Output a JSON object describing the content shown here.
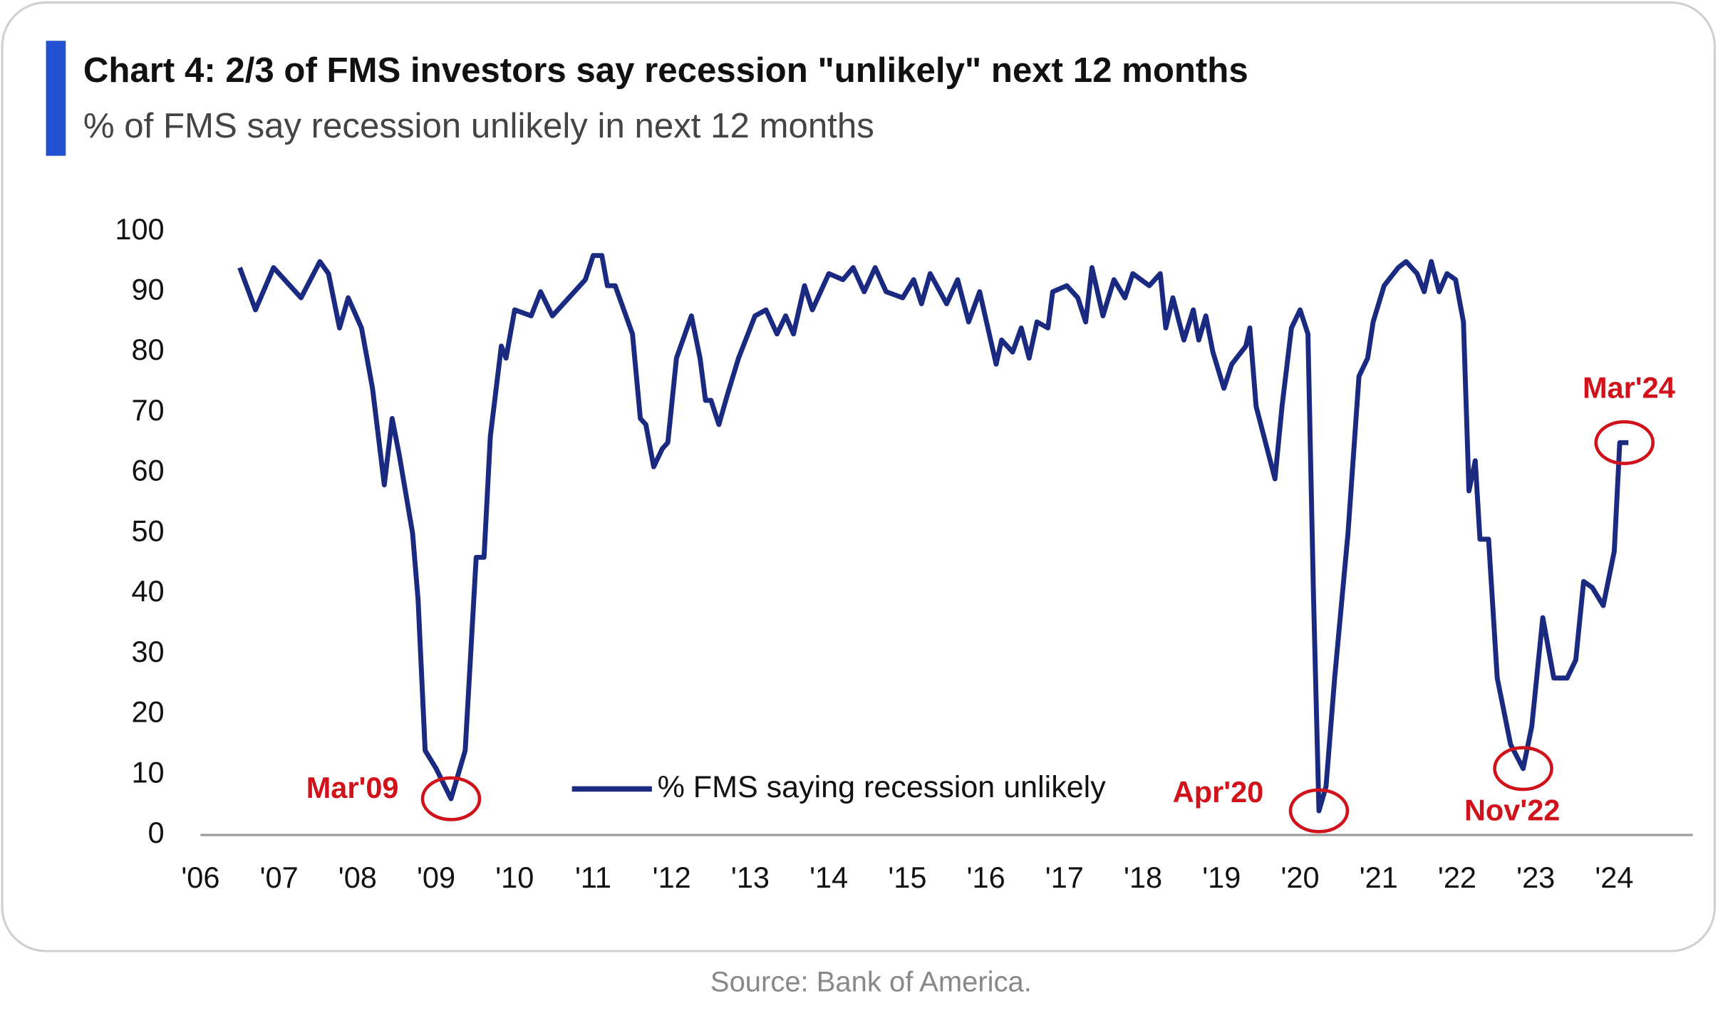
{
  "chart_data": {
    "type": "line",
    "title": "Chart 4: 2/3 of FMS investors say recession \"unlikely\" next 12 months",
    "subtitle": "% of FMS say recession unlikely in next 12 months",
    "source": "Source: Bank of America.",
    "x": [
      2006.5,
      2006.7,
      2006.93,
      2007.28,
      2007.52,
      2007.63,
      2007.77,
      2007.88,
      2008.05,
      2008.19,
      2008.34,
      2008.44,
      2008.53,
      2008.7,
      2008.77,
      2008.86,
      2009.0,
      2009.19,
      2009.37,
      2009.51,
      2009.61,
      2009.69,
      2009.83,
      2009.89,
      2010.0,
      2010.21,
      2010.33,
      2010.48,
      2010.69,
      2010.9,
      2011.0,
      2011.11,
      2011.18,
      2011.28,
      2011.5,
      2011.6,
      2011.67,
      2011.77,
      2011.88,
      2011.95,
      2012.06,
      2012.25,
      2012.36,
      2012.43,
      2012.5,
      2012.6,
      2012.71,
      2012.85,
      2013.06,
      2013.2,
      2013.34,
      2013.45,
      2013.55,
      2013.69,
      2013.79,
      2014.0,
      2014.18,
      2014.31,
      2014.45,
      2014.59,
      2014.73,
      2014.94,
      2015.08,
      2015.18,
      2015.29,
      2015.5,
      2015.64,
      2015.78,
      2015.92,
      2016.13,
      2016.2,
      2016.34,
      2016.45,
      2016.55,
      2016.65,
      2016.79,
      2016.85,
      2017.03,
      2017.17,
      2017.27,
      2017.35,
      2017.49,
      2017.63,
      2017.77,
      2017.87,
      2018.08,
      2018.22,
      2018.29,
      2018.38,
      2018.52,
      2018.64,
      2018.71,
      2018.8,
      2018.89,
      2019.03,
      2019.13,
      2019.31,
      2019.36,
      2019.44,
      2019.58,
      2019.68,
      2019.77,
      2019.89,
      2020.0,
      2020.1,
      2020.17,
      2020.24,
      2020.33,
      2020.44,
      2020.61,
      2020.75,
      2020.86,
      2020.93,
      2021.07,
      2021.25,
      2021.35,
      2021.49,
      2021.58,
      2021.67,
      2021.77,
      2021.87,
      2021.98,
      2022.08,
      2022.15,
      2022.23,
      2022.29,
      2022.4,
      2022.51,
      2022.68,
      2022.84,
      2022.95,
      2023.09,
      2023.23,
      2023.4,
      2023.51,
      2023.61,
      2023.72,
      2023.86,
      2024.0,
      2024.07,
      2024.18
    ],
    "series": [
      {
        "name": "% FMS saying recession unlikely",
        "color": "#1a2a80",
        "values": [
          94,
          87,
          94,
          89,
          95,
          93,
          84,
          89,
          84,
          74,
          58,
          69,
          63,
          50,
          39,
          14,
          11,
          6,
          14,
          46,
          46,
          66,
          81,
          79,
          87,
          86,
          90,
          86,
          89,
          92,
          96,
          96,
          91,
          91,
          83,
          69,
          68,
          61,
          64,
          65,
          79,
          86,
          79,
          72,
          72,
          68,
          73,
          79,
          86,
          87,
          83,
          86,
          83,
          91,
          87,
          93,
          92,
          94,
          90,
          94,
          90,
          89,
          92,
          88,
          93,
          88,
          92,
          85,
          90,
          78,
          82,
          80,
          84,
          79,
          85,
          84,
          90,
          91,
          89,
          85,
          94,
          86,
          92,
          89,
          93,
          91,
          93,
          84,
          89,
          82,
          87,
          82,
          86,
          80,
          74,
          78,
          81,
          84,
          71,
          64,
          59,
          71,
          84,
          87,
          83,
          40,
          4,
          8,
          26,
          50,
          76,
          79,
          85,
          91,
          94,
          95,
          93,
          90,
          95,
          90,
          93,
          92,
          85,
          57,
          62,
          49,
          49,
          26,
          15,
          11,
          18,
          36,
          26,
          26,
          29,
          42,
          41,
          38,
          47,
          65,
          65
        ]
      }
    ],
    "xlim": [
      2006,
      2025
    ],
    "xticks": [
      {
        "value": 2006,
        "label": "'06"
      },
      {
        "value": 2007,
        "label": "'07"
      },
      {
        "value": 2008,
        "label": "'08"
      },
      {
        "value": 2009,
        "label": "'09"
      },
      {
        "value": 2010,
        "label": "'10"
      },
      {
        "value": 2011,
        "label": "'11"
      },
      {
        "value": 2012,
        "label": "'12"
      },
      {
        "value": 2013,
        "label": "'13"
      },
      {
        "value": 2014,
        "label": "'14"
      },
      {
        "value": 2015,
        "label": "'15"
      },
      {
        "value": 2016,
        "label": "'16"
      },
      {
        "value": 2017,
        "label": "'17"
      },
      {
        "value": 2018,
        "label": "'18"
      },
      {
        "value": 2019,
        "label": "'19"
      },
      {
        "value": 2020,
        "label": "'20"
      },
      {
        "value": 2021,
        "label": "'21"
      },
      {
        "value": 2022,
        "label": "'22"
      },
      {
        "value": 2023,
        "label": "'23"
      },
      {
        "value": 2024,
        "label": "'24"
      }
    ],
    "ylim": [
      0,
      100
    ],
    "yticks": [
      0,
      10,
      20,
      30,
      40,
      50,
      60,
      70,
      80,
      90,
      100
    ],
    "annotation_color": "#d0121b",
    "annotations": [
      {
        "text": "Mar'09",
        "x": 2009.19,
        "y": 6
      },
      {
        "text": "Apr'20",
        "x": 2020.24,
        "y": 4
      },
      {
        "text": "Nov'22",
        "x": 2022.84,
        "y": 11
      },
      {
        "text": "Mar'24",
        "x": 2024.13,
        "y": 65
      }
    ]
  }
}
